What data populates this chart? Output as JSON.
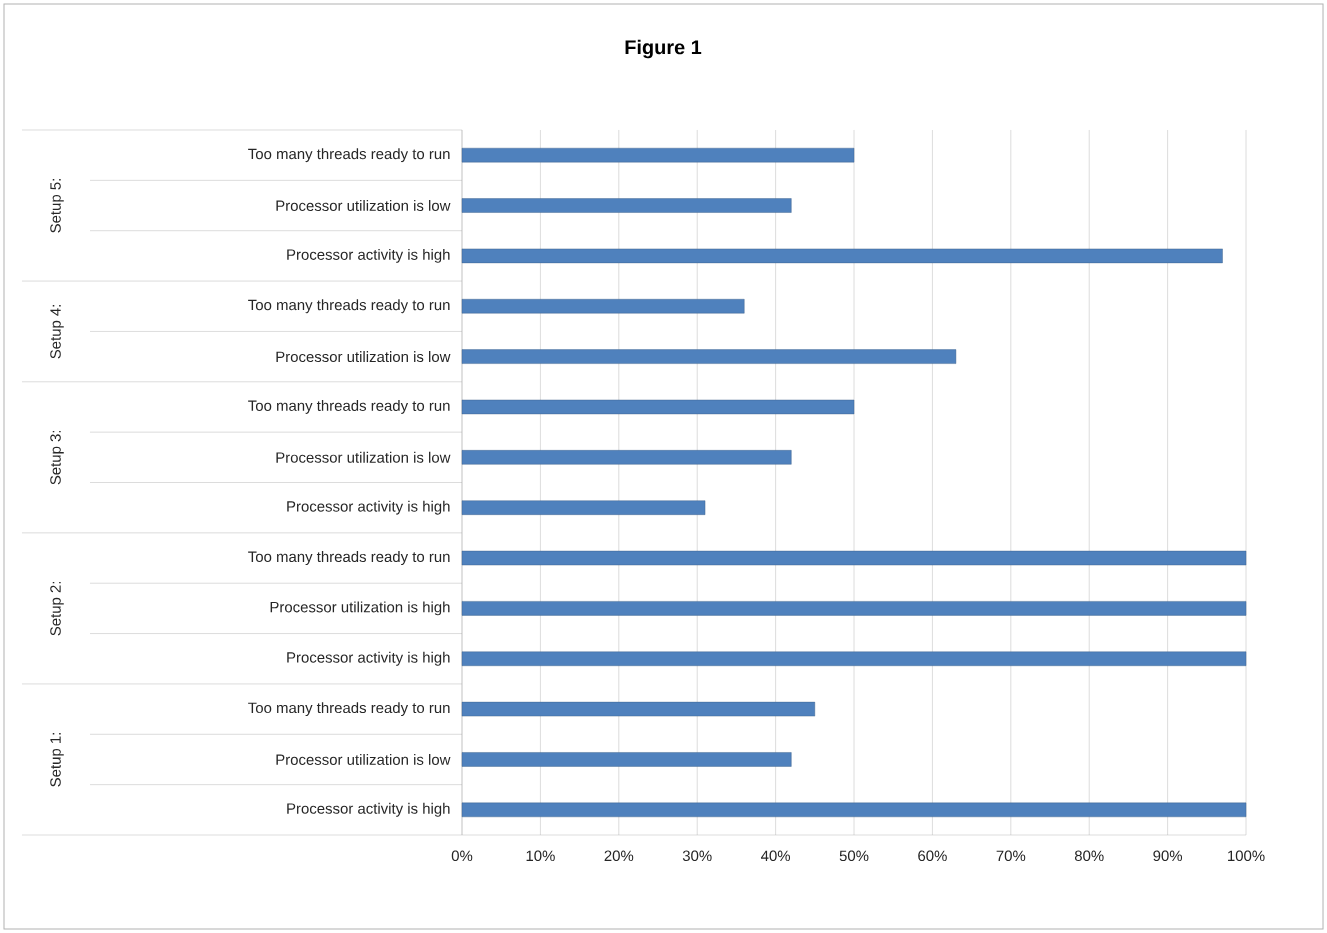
{
  "chart_data": {
    "type": "bar",
    "orientation": "horizontal",
    "title": "Figure 1",
    "categories": [
      "Too many threads ready to run",
      "Processor utilization is low",
      "Processor activity is high",
      "Too many threads ready to run",
      "Processor utilization is low",
      "Too many threads ready to run",
      "Processor utilization is low",
      "Processor activity is high",
      "Too many threads ready to run",
      "Processor utilization is high",
      "Processor activity is high",
      "Too many threads ready to run",
      "Processor utilization is low",
      "Processor activity is high"
    ],
    "values": [
      50,
      42,
      97,
      36,
      63,
      50,
      42,
      31,
      100,
      100,
      100,
      45,
      42,
      100
    ],
    "color": "#4f81bd",
    "xlim": [
      0,
      100
    ],
    "xticks": [
      {
        "value": 0,
        "label": "0%"
      },
      {
        "value": 10,
        "label": "10%"
      },
      {
        "value": 20,
        "label": "20%"
      },
      {
        "value": 30,
        "label": "30%"
      },
      {
        "value": 40,
        "label": "40%"
      },
      {
        "value": 50,
        "label": "50%"
      },
      {
        "value": 60,
        "label": "60%"
      },
      {
        "value": 70,
        "label": "70%"
      },
      {
        "value": 80,
        "label": "80%"
      },
      {
        "value": 90,
        "label": "90%"
      },
      {
        "value": 100,
        "label": "100%"
      }
    ],
    "grid": "x",
    "annotations": [
      "Setup 5:",
      "Setup 4:",
      "Setup 3:",
      "Setup 2:",
      "Setup 1:"
    ]
  }
}
